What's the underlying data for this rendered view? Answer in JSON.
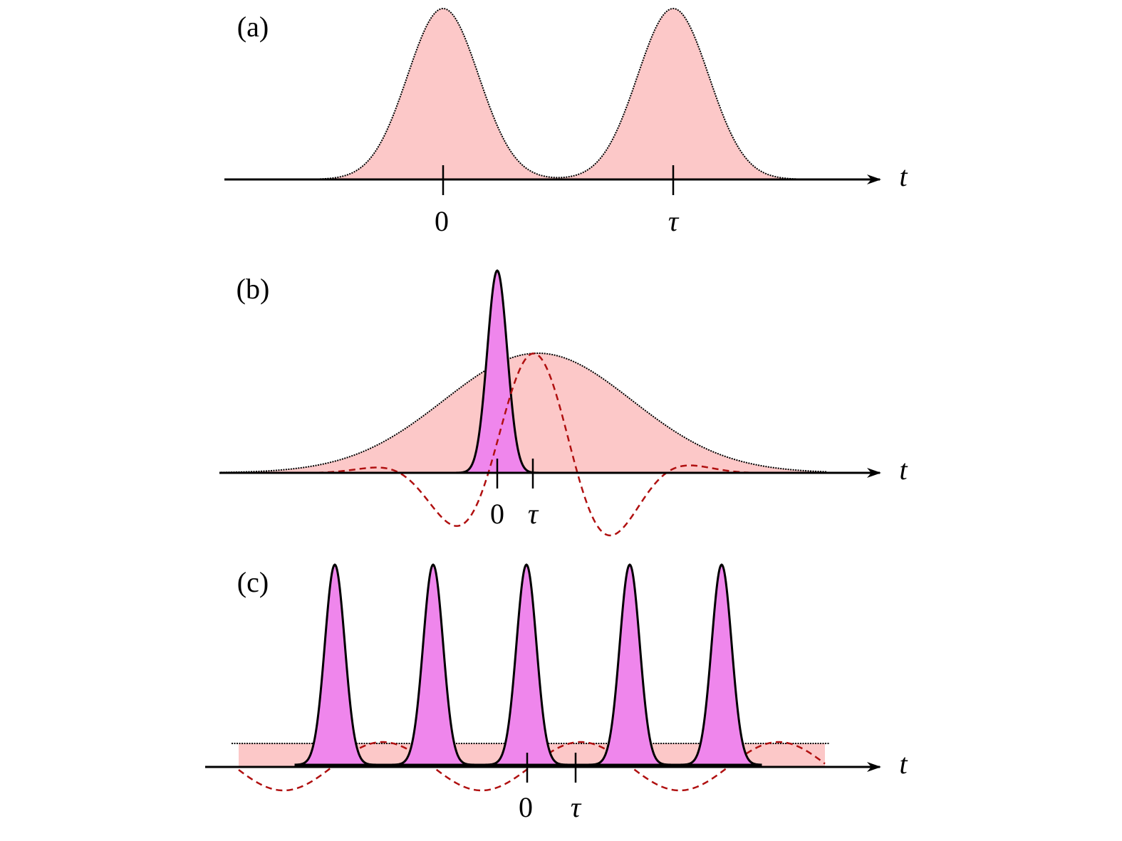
{
  "panels": [
    {
      "label": "(a)",
      "axis_label": "t",
      "tick_labels": [
        "0",
        "τ"
      ]
    },
    {
      "label": "(b)",
      "axis_label": "t",
      "tick_labels": [
        "0",
        "τ"
      ]
    },
    {
      "label": "(c)",
      "axis_label": "t",
      "tick_labels": [
        "0",
        "τ"
      ]
    }
  ]
}
